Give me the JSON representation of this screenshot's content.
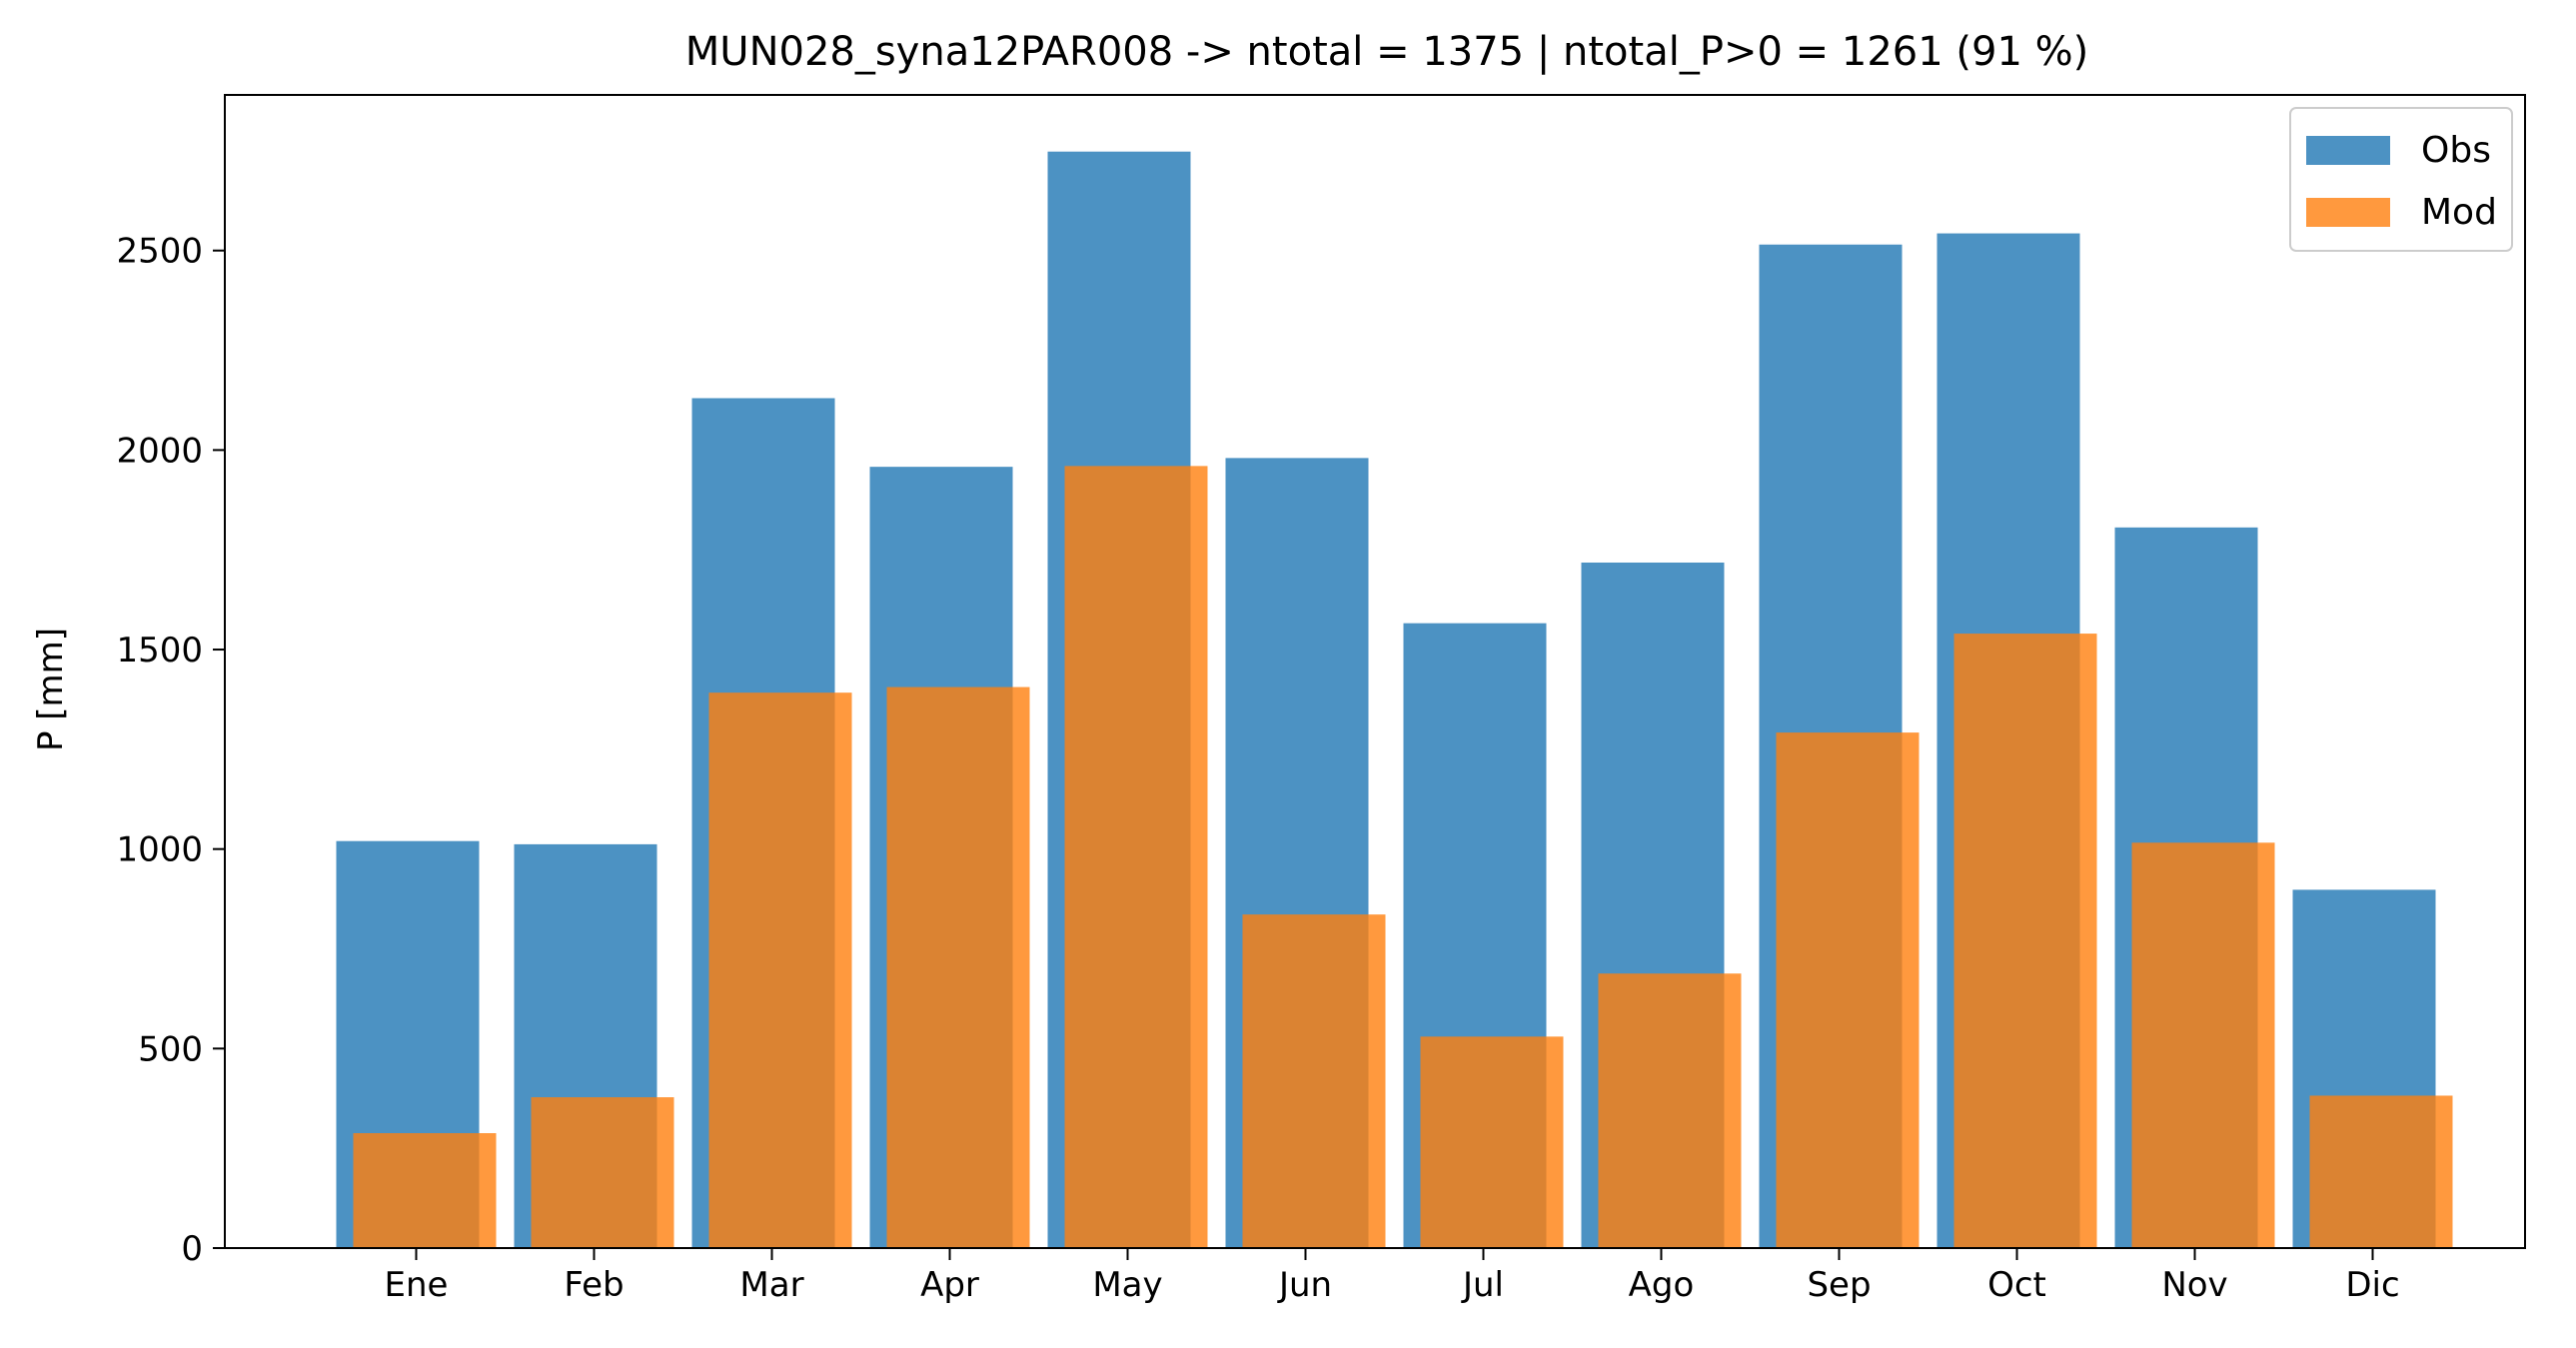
{
  "chart_data": {
    "type": "bar",
    "title": "MUN028_syna12PAR008 -> ntotal = 1375 | ntotal_P>0 = 1261 (91 %)",
    "xlabel": "",
    "ylabel": "P [mm]",
    "categories": [
      "Ene",
      "Feb",
      "Mar",
      "Apr",
      "May",
      "Jun",
      "Jul",
      "Ago",
      "Sep",
      "Oct",
      "Nov",
      "Dic"
    ],
    "ylim": [
      0,
      2890
    ],
    "yticks": [
      0,
      500,
      1000,
      1500,
      2000,
      2500
    ],
    "grid": false,
    "legend": "top-right",
    "series": [
      {
        "name": "Obs",
        "color": "#1f77b4",
        "values": [
          1020,
          1012,
          2130,
          1958,
          2748,
          1980,
          1566,
          1718,
          2515,
          2543,
          1806,
          898
        ]
      },
      {
        "name": "Mod",
        "color": "#ff7f0e",
        "values": [
          288,
          378,
          1392,
          1406,
          1960,
          836,
          530,
          688,
          1292,
          1540,
          1016,
          382
        ]
      }
    ]
  }
}
